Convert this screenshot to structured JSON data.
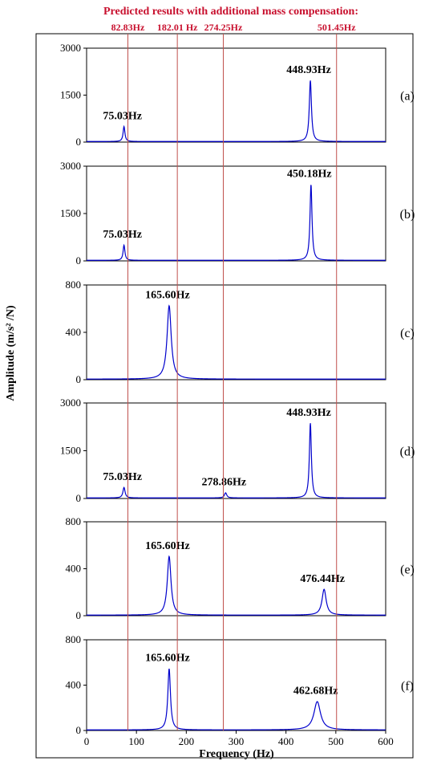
{
  "header": {
    "title": "Predicted results with additional mass compensation:",
    "predicted_frequencies": [
      82.83,
      182.01,
      274.25,
      501.45
    ],
    "predicted_labels": [
      "82.83Hz",
      "182.01 Hz",
      "274.25Hz",
      "501.45Hz"
    ],
    "line_color": "#c0504d"
  },
  "chart_data": {
    "type": "line",
    "xlabel": "Frequency (Hz)",
    "ylabel": "Amplitude (m/s² /N)",
    "xlim": [
      0,
      600
    ],
    "xticks": [
      0,
      100,
      200,
      300,
      400,
      500,
      600
    ],
    "series_color": "#0000cc",
    "panels": [
      {
        "label": "(a)",
        "ylim": [
          0,
          3000
        ],
        "yticks": [
          0,
          1500,
          3000
        ],
        "peaks": [
          {
            "f": 75.03,
            "amp": 480,
            "width": 2.2,
            "label": "75.03Hz"
          },
          {
            "f": 448.93,
            "amp": 1950,
            "width": 2.6,
            "label": "448.93Hz"
          }
        ]
      },
      {
        "label": "(b)",
        "ylim": [
          0,
          3000
        ],
        "yticks": [
          0,
          1500,
          3000
        ],
        "peaks": [
          {
            "f": 75.03,
            "amp": 480,
            "width": 2.2,
            "label": "75.03Hz"
          },
          {
            "f": 450.18,
            "amp": 2400,
            "width": 2.4,
            "label": "450.18Hz"
          }
        ]
      },
      {
        "label": "(c)",
        "ylim": [
          0,
          800
        ],
        "yticks": [
          0,
          400,
          800
        ],
        "peaks": [
          {
            "f": 165.6,
            "amp": 620,
            "width": 5,
            "label": "165.60Hz"
          }
        ]
      },
      {
        "label": "(d)",
        "ylim": [
          0,
          3000
        ],
        "yticks": [
          0,
          1500,
          3000
        ],
        "peaks": [
          {
            "f": 75.03,
            "amp": 330,
            "width": 2.6,
            "label": "75.03Hz"
          },
          {
            "f": 278.86,
            "amp": 160,
            "width": 2.8,
            "label": "278.86Hz"
          },
          {
            "f": 448.93,
            "amp": 2350,
            "width": 2.4,
            "label": "448.93Hz"
          }
        ]
      },
      {
        "label": "(e)",
        "ylim": [
          0,
          800
        ],
        "yticks": [
          0,
          400,
          800
        ],
        "peaks": [
          {
            "f": 165.6,
            "amp": 500,
            "width": 4.5,
            "label": "165.60Hz"
          },
          {
            "f": 476.44,
            "amp": 220,
            "width": 5,
            "label": "476.44Hz"
          }
        ]
      },
      {
        "label": "(f)",
        "ylim": [
          0,
          800
        ],
        "yticks": [
          0,
          400,
          800
        ],
        "peaks": [
          {
            "f": 165.6,
            "amp": 540,
            "width": 3.2,
            "label": "165.60Hz"
          },
          {
            "f": 462.68,
            "amp": 250,
            "width": 8,
            "label": "462.68Hz"
          }
        ]
      }
    ]
  }
}
